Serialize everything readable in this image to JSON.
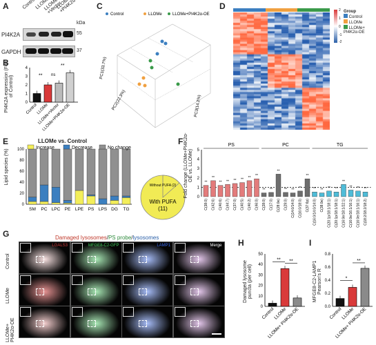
{
  "panels": {
    "A": {
      "letter": "A",
      "lanes": [
        "Control",
        "LLOMe",
        "LLOMe +Vector",
        "LLOMe +PI4K2α-OE"
      ],
      "kda_label": "kDa",
      "bands": [
        {
          "protein": "PI4K2A",
          "kda": "55"
        },
        {
          "protein": "GAPDH",
          "kda": "37"
        }
      ]
    },
    "B": {
      "letter": "B",
      "ylabel": "PI4K2A expression (Fold of Control)",
      "yticks": [
        "0",
        "1",
        "2",
        "3",
        "4"
      ],
      "sig": [
        "**",
        "ns",
        "**"
      ]
    },
    "C": {
      "letter": "C",
      "legend": [
        "Control",
        "LLOMe",
        "LLOMe+PI4K2α-OE"
      ],
      "axes": [
        "PC1(33.7%)",
        "PC2(22.3%)",
        "PC3(14.2%)"
      ]
    },
    "D": {
      "letter": "D",
      "group_title": "Group",
      "groups": [
        "Control",
        "LLOMe",
        "LLOMe+ PI4K2α-OE"
      ],
      "scale_ticks": [
        "2",
        "1",
        "0",
        "-1",
        "-2"
      ]
    },
    "E": {
      "letter": "E",
      "title": "LLOMe vs. Control",
      "legend": [
        "Increase",
        "Decrease",
        "No change"
      ],
      "ylabel": "Lipid species (%)",
      "yticks": [
        "0",
        "20",
        "40",
        "60",
        "80",
        "100"
      ],
      "pie_small": "Without PUFA (2)",
      "pie_big_line1": "With PUFA",
      "pie_big_line2": "(11)"
    },
    "F": {
      "letter": "F",
      "ylabel": "Fold change (LLOMe+PI4K2α-OE vs. LLOMe)",
      "yticks": [
        "0",
        "1",
        "2",
        "3",
        "4",
        "5"
      ],
      "groups": [
        "PS",
        "PC",
        "TG"
      ],
      "sig": "**"
    },
    "G": {
      "letter": "G",
      "header_red": "Damaged lysosomes",
      "header_sep": "/",
      "header_green": "PS probe",
      "header_blue": "lysosomes",
      "columns": [
        "LGALS3",
        "MFGE8-C2-GFP",
        "LAMP1",
        "Merge"
      ],
      "rows": [
        "Control",
        "LLOMe",
        "LLOMe+ PI4K2α-OE"
      ]
    },
    "H": {
      "letter": "H",
      "ylabel": "Damaged lysosome puncta (per cell)",
      "yticks": [
        "0",
        "10",
        "20",
        "30",
        "40",
        "50"
      ],
      "xlabels": [
        "Control",
        "LLOMe",
        "LLOMe+ PI4K2α-OE"
      ],
      "sig": [
        "**",
        "**"
      ]
    },
    "I": {
      "letter": "I",
      "ylabel": "MFGE8-C2-LAMP1 Pearson's R",
      "yticks": [
        "0.0",
        "0.2",
        "0.4",
        "0.6",
        "0.8"
      ],
      "xlabels": [
        "Control",
        "LLOMe",
        "LLOMe+ PI4K2α-OE"
      ],
      "sig": [
        "*",
        "**"
      ]
    }
  },
  "chart_data": [
    {
      "type": "bar",
      "panel": "B",
      "categories": [
        "Control",
        "LLOMe",
        "LLOMe+Vector",
        "LLOMe+PI4K2α-OE"
      ],
      "values": [
        1.0,
        2.0,
        2.2,
        3.4
      ],
      "colors": [
        "#111111",
        "#d93a3a",
        "#bbbbbb",
        "#d0d0d0"
      ],
      "ylim": [
        0,
        4
      ],
      "ylabel": "PI4K2A expression (Fold of Control)"
    },
    {
      "type": "bar",
      "panel": "E",
      "title": "LLOMe vs. Control",
      "categories": [
        "SM",
        "PC",
        "LPC",
        "PE",
        "LPE",
        "PS",
        "LPS",
        "DG",
        "TG"
      ],
      "series": [
        {
          "name": "Increase",
          "color": "#f3ee5a",
          "values": [
            5,
            5,
            3,
            2,
            25,
            15,
            0,
            7,
            12
          ]
        },
        {
          "name": "Decrease",
          "color": "#3b7fc0",
          "values": [
            8,
            30,
            28,
            5,
            0,
            2,
            10,
            8,
            3
          ]
        },
        {
          "name": "No change",
          "color": "#909090",
          "values": [
            87,
            65,
            69,
            93,
            75,
            83,
            90,
            85,
            85
          ]
        }
      ],
      "ylim": [
        0,
        100
      ],
      "ylabel": "Lipid species (%)"
    },
    {
      "type": "bar",
      "panel": "F",
      "categories": [
        "C(38:0)",
        "C(42:6)",
        "C(40:6)",
        "C(44:7)",
        "C(37:0)",
        "C(40:5)",
        "C(40:2)",
        "C(46:0)",
        "C(28:0)",
        "C(17:0)",
        "C(28:0e)",
        "C(29:0)",
        "C(14:0/14:0)",
        "C(16:0/18:0)",
        "C(37:6p)",
        "C(16:0/14:0/14:0)",
        "C(38:0e)",
        "C(20:1p/18:1/18:1)",
        "C(20:1p/18:1/18:1)",
        "C(16:0e/18:1/22:1)",
        "C(16:0e/16:1/16:1)",
        "C(16:0e/18:1/16:1)",
        "C(18:2/18:2/18:2)"
      ],
      "values": [
        1.2,
        1.7,
        1.2,
        1.3,
        1.4,
        1.5,
        1.7,
        1.9,
        0.4,
        0.45,
        2.4,
        0.45,
        0.4,
        0.6,
        1.9,
        0.5,
        0.4,
        0.6,
        0.5,
        1.3,
        0.7,
        0.6,
        0.5
      ],
      "group_of": [
        "PS",
        "PS",
        "PS",
        "PS",
        "PS",
        "PS",
        "PS",
        "PS",
        "PC",
        "PC",
        "PC",
        "PC",
        "PC",
        "PC",
        "PC",
        "TG",
        "TG",
        "TG",
        "TG",
        "TG",
        "TG",
        "TG",
        "TG"
      ],
      "group_colors": {
        "PS": "#e37b7b",
        "PC": "#6d6d6d",
        "TG": "#4fbcd8"
      },
      "reference_line": 1,
      "ylim": [
        0,
        5
      ]
    },
    {
      "type": "bar",
      "panel": "H",
      "categories": [
        "Control",
        "LLOMe",
        "LLOMe+PI4K2α-OE"
      ],
      "values": [
        3,
        36,
        8
      ],
      "colors": [
        "#111111",
        "#d93a3a",
        "#8a8a8a"
      ],
      "ylim": [
        0,
        50
      ]
    },
    {
      "type": "bar",
      "panel": "I",
      "categories": [
        "Control",
        "LLOMe",
        "LLOMe+PI4K2α-OE"
      ],
      "values": [
        0.12,
        0.29,
        0.58
      ],
      "colors": [
        "#111111",
        "#d93a3a",
        "#8a8a8a"
      ],
      "ylim": [
        0,
        0.8
      ]
    }
  ]
}
